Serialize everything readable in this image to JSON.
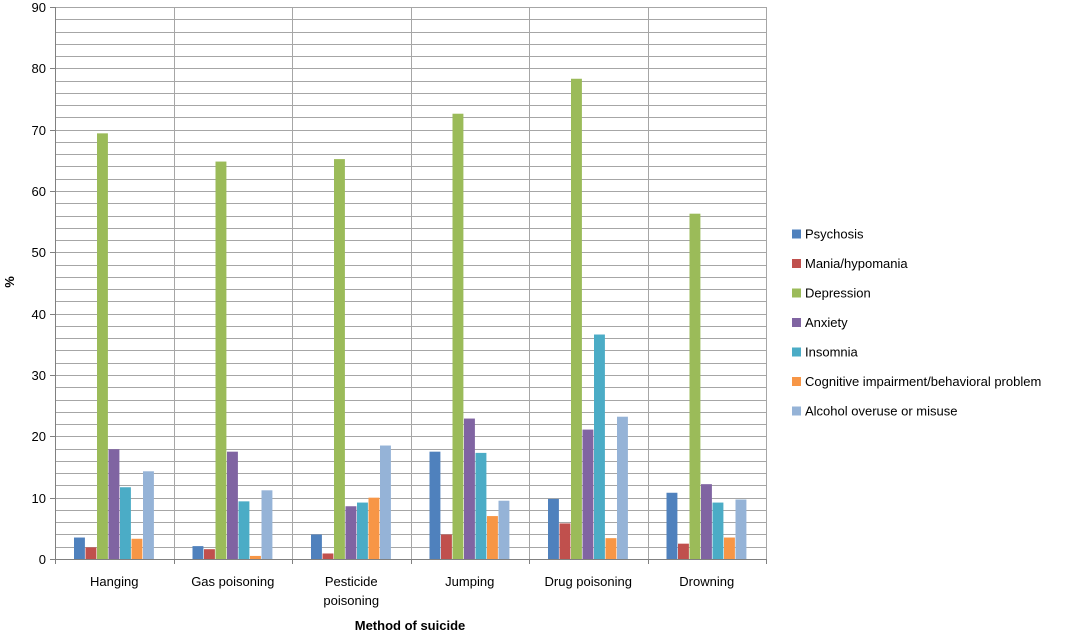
{
  "chart_data": {
    "type": "bar",
    "title": "",
    "xlabel": "Method of suicide",
    "ylabel": "%",
    "ylim": [
      0,
      90
    ],
    "yticks": [
      0,
      10,
      20,
      30,
      40,
      50,
      60,
      70,
      80,
      90
    ],
    "minor_grid_step": 2,
    "grid": true,
    "legend_position": "right",
    "categories": [
      [
        "Hanging"
      ],
      [
        "Gas poisoning"
      ],
      [
        "Pesticide",
        "poisoning"
      ],
      [
        "Jumping"
      ],
      [
        "Drug poisoning"
      ],
      [
        "Drowning"
      ]
    ],
    "series": [
      {
        "name": "Psychosis",
        "color": "#4F81BD",
        "values": [
          3.5,
          2.1,
          4.0,
          17.5,
          9.8,
          10.8
        ]
      },
      {
        "name": "Mania/hypomania",
        "color": "#C0504D",
        "values": [
          1.9,
          1.6,
          0.9,
          4.0,
          5.8,
          2.5
        ]
      },
      {
        "name": "Depression",
        "color": "#9BBB59",
        "values": [
          69.4,
          64.8,
          65.2,
          72.6,
          78.3,
          56.3
        ]
      },
      {
        "name": "Anxiety",
        "color": "#8064A2",
        "values": [
          17.9,
          17.5,
          8.6,
          22.9,
          21.1,
          12.2
        ]
      },
      {
        "name": "Insomnia",
        "color": "#4BACC6",
        "values": [
          11.7,
          9.4,
          9.2,
          17.3,
          36.6,
          9.2
        ]
      },
      {
        "name": "Cognitive impairment/behavioral problem",
        "color": "#F79646",
        "values": [
          3.3,
          0.5,
          10.0,
          7.0,
          3.4,
          3.5
        ]
      },
      {
        "name": "Alcohol overuse or misuse",
        "color": "#95B3D7",
        "values": [
          14.3,
          11.2,
          18.5,
          9.5,
          23.2,
          9.7
        ]
      }
    ]
  }
}
